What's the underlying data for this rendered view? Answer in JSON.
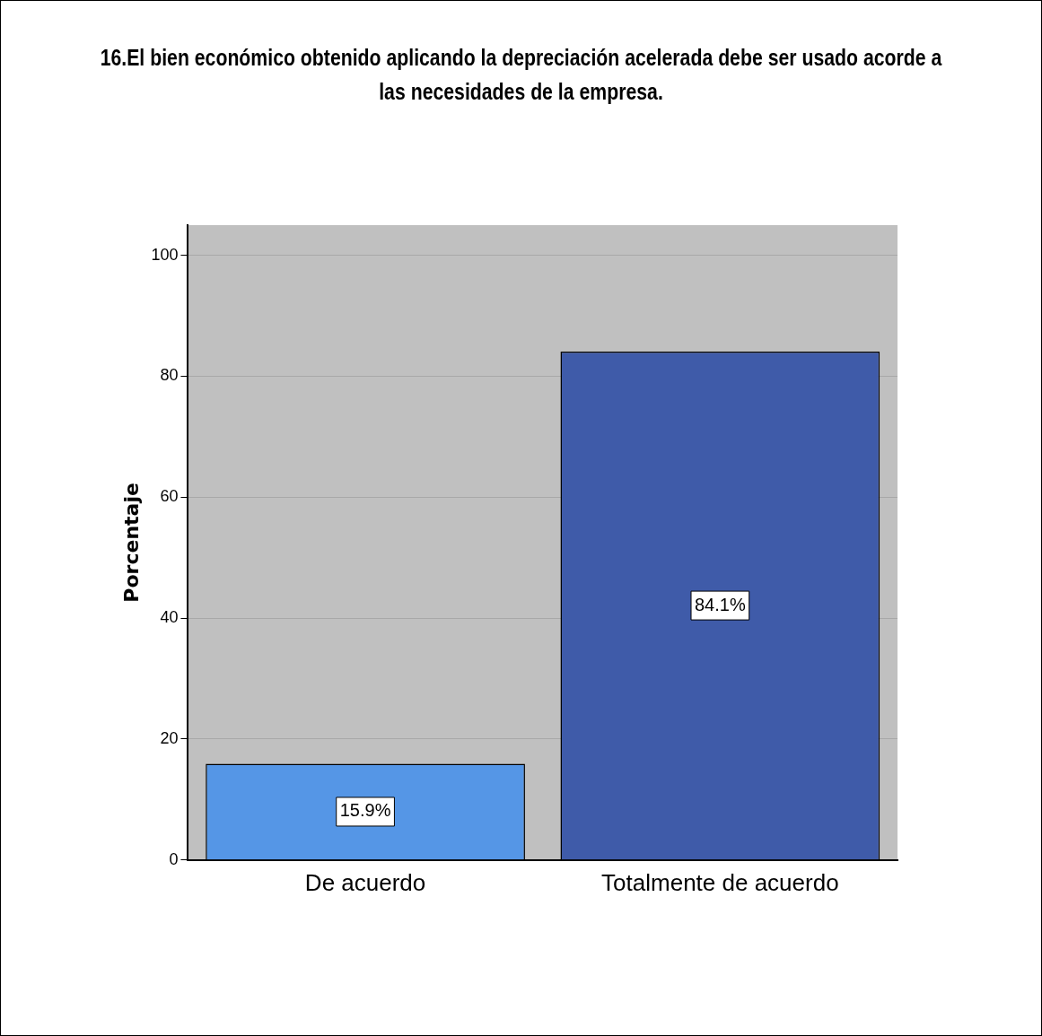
{
  "chart_data": {
    "type": "bar",
    "title": "16.El bien económico obtenido aplicando la depreciación acelerada debe ser usado acorde a las necesidades de la empresa.",
    "ylabel": "Porcentaje",
    "categories": [
      "De acuerdo",
      "Totalmente de acuerdo"
    ],
    "values": [
      15.9,
      84.1
    ],
    "colors": [
      "#5596e6",
      "#3f5ba9"
    ],
    "value_labels": [
      "15.9%",
      "84.1%"
    ],
    "ylim": [
      0,
      105
    ],
    "yticks": [
      0,
      20,
      40,
      60,
      80,
      100
    ],
    "grid": "y"
  }
}
